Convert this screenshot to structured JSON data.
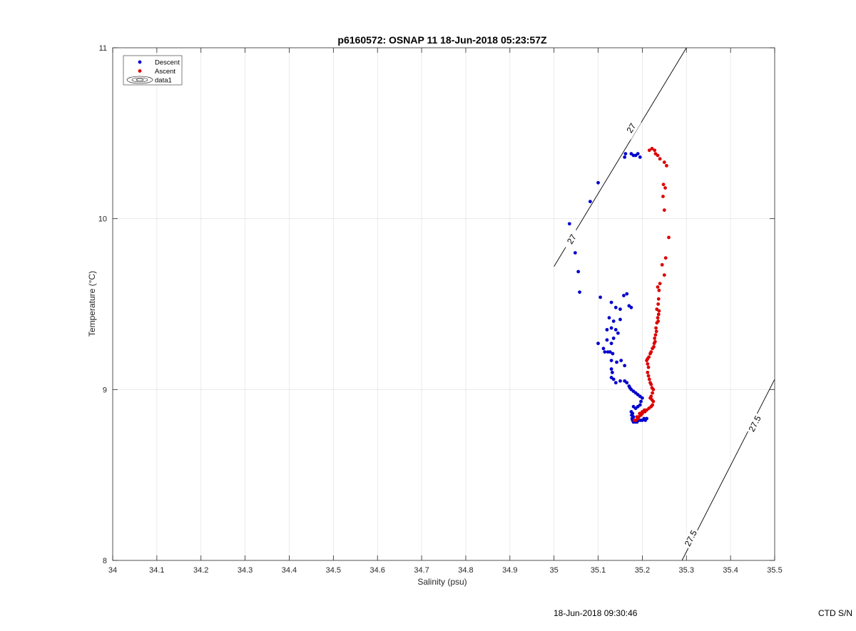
{
  "chart_data": {
    "type": "scatter",
    "title": "p6160572: OSNAP 11 18-Jun-2018 05:23:57Z",
    "xlabel": "Salinity (psu)",
    "ylabel": "Temperature (°C)",
    "xlim": [
      34,
      35.5
    ],
    "ylim": [
      8,
      11
    ],
    "x_ticks": [
      34,
      34.1,
      34.2,
      34.3,
      34.4,
      34.5,
      34.6,
      34.7,
      34.8,
      34.9,
      35,
      35.1,
      35.2,
      35.3,
      35.4,
      35.5
    ],
    "x_tick_labels": [
      "34",
      "34.1",
      "34.2",
      "34.3",
      "34.4",
      "34.5",
      "34.6",
      "34.7",
      "34.8",
      "34.9",
      "35",
      "35.1",
      "35.2",
      "35.3",
      "35.4",
      "35.5"
    ],
    "y_ticks": [
      8,
      9,
      10,
      11
    ],
    "y_tick_labels": [
      "8",
      "9",
      "10",
      "11"
    ],
    "grid": true,
    "legend_position": "top-left",
    "legend": [
      {
        "label": "Descent",
        "color": "#0000cc",
        "marker": "dot"
      },
      {
        "label": "Ascent",
        "color": "#dd0000",
        "marker": "dot"
      },
      {
        "label": "data1",
        "marker": "contour"
      }
    ],
    "series": [
      {
        "name": "Descent",
        "color": "#0000cc",
        "points": [
          [
            35.16,
            10.36
          ],
          [
            35.162,
            10.38
          ],
          [
            35.175,
            10.38
          ],
          [
            35.18,
            10.37
          ],
          [
            35.185,
            10.37
          ],
          [
            35.19,
            10.38
          ],
          [
            35.195,
            10.36
          ],
          [
            35.1,
            10.21
          ],
          [
            35.082,
            10.1
          ],
          [
            35.035,
            9.97
          ],
          [
            35.048,
            9.8
          ],
          [
            35.055,
            9.69
          ],
          [
            35.058,
            9.57
          ],
          [
            35.105,
            9.54
          ],
          [
            35.158,
            9.55
          ],
          [
            35.165,
            9.56
          ],
          [
            35.13,
            9.51
          ],
          [
            35.14,
            9.48
          ],
          [
            35.15,
            9.47
          ],
          [
            35.17,
            9.49
          ],
          [
            35.175,
            9.48
          ],
          [
            35.125,
            9.42
          ],
          [
            35.135,
            9.4
          ],
          [
            35.15,
            9.41
          ],
          [
            35.12,
            9.35
          ],
          [
            35.13,
            9.36
          ],
          [
            35.14,
            9.35
          ],
          [
            35.145,
            9.33
          ],
          [
            35.1,
            9.27
          ],
          [
            35.112,
            9.24
          ],
          [
            35.12,
            9.29
          ],
          [
            35.13,
            9.27
          ],
          [
            35.135,
            9.3
          ],
          [
            35.115,
            9.22
          ],
          [
            35.122,
            9.22
          ],
          [
            35.127,
            9.22
          ],
          [
            35.133,
            9.21
          ],
          [
            35.13,
            9.17
          ],
          [
            35.142,
            9.16
          ],
          [
            35.152,
            9.17
          ],
          [
            35.16,
            9.14
          ],
          [
            35.13,
            9.12
          ],
          [
            35.132,
            9.1
          ],
          [
            35.13,
            9.07
          ],
          [
            35.135,
            9.06
          ],
          [
            35.14,
            9.04
          ],
          [
            35.15,
            9.05
          ],
          [
            35.16,
            9.05
          ],
          [
            35.165,
            9.04
          ],
          [
            35.17,
            9.02
          ],
          [
            35.172,
            9.01
          ],
          [
            35.175,
            9.0
          ],
          [
            35.18,
            8.99
          ],
          [
            35.185,
            8.98
          ],
          [
            35.19,
            8.97
          ],
          [
            35.195,
            8.96
          ],
          [
            35.2,
            8.95
          ],
          [
            35.197,
            8.93
          ],
          [
            35.195,
            8.91
          ],
          [
            35.19,
            8.9
          ],
          [
            35.185,
            8.89
          ],
          [
            35.18,
            8.9
          ],
          [
            35.175,
            8.87
          ],
          [
            35.178,
            8.86
          ],
          [
            35.176,
            8.85
          ],
          [
            35.18,
            8.84
          ],
          [
            35.177,
            8.83
          ],
          [
            35.178,
            8.82
          ],
          [
            35.18,
            8.81
          ],
          [
            35.184,
            8.81
          ],
          [
            35.188,
            8.81
          ],
          [
            35.192,
            8.82
          ],
          [
            35.196,
            8.82
          ],
          [
            35.2,
            8.82
          ],
          [
            35.204,
            8.83
          ],
          [
            35.207,
            8.82
          ],
          [
            35.21,
            8.83
          ]
        ]
      },
      {
        "name": "Ascent",
        "color": "#dd0000",
        "points": [
          [
            35.216,
            10.4
          ],
          [
            35.222,
            10.41
          ],
          [
            35.228,
            10.4
          ],
          [
            35.23,
            10.38
          ],
          [
            35.235,
            10.37
          ],
          [
            35.24,
            10.35
          ],
          [
            35.25,
            10.33
          ],
          [
            35.255,
            10.31
          ],
          [
            35.248,
            10.2
          ],
          [
            35.252,
            10.18
          ],
          [
            35.247,
            10.13
          ],
          [
            35.25,
            10.05
          ],
          [
            35.26,
            9.89
          ],
          [
            35.253,
            9.77
          ],
          [
            35.245,
            9.73
          ],
          [
            35.25,
            9.67
          ],
          [
            35.24,
            9.62
          ],
          [
            35.235,
            9.6
          ],
          [
            35.238,
            9.58
          ],
          [
            35.237,
            9.53
          ],
          [
            35.236,
            9.5
          ],
          [
            35.233,
            9.47
          ],
          [
            35.238,
            9.46
          ],
          [
            35.237,
            9.44
          ],
          [
            35.235,
            9.42
          ],
          [
            35.236,
            9.4
          ],
          [
            35.233,
            9.39
          ],
          [
            35.231,
            9.36
          ],
          [
            35.232,
            9.34
          ],
          [
            35.23,
            9.32
          ],
          [
            35.228,
            9.3
          ],
          [
            35.229,
            9.28
          ],
          [
            35.227,
            9.27
          ],
          [
            35.226,
            9.25
          ],
          [
            35.223,
            9.24
          ],
          [
            35.22,
            9.22
          ],
          [
            35.218,
            9.21
          ],
          [
            35.215,
            9.19
          ],
          [
            35.212,
            9.18
          ],
          [
            35.21,
            9.17
          ],
          [
            35.212,
            9.15
          ],
          [
            35.214,
            9.13
          ],
          [
            35.212,
            9.1
          ],
          [
            35.214,
            9.08
          ],
          [
            35.216,
            9.06
          ],
          [
            35.218,
            9.04
          ],
          [
            35.22,
            9.03
          ],
          [
            35.222,
            9.01
          ],
          [
            35.225,
            9.0
          ],
          [
            35.223,
            8.98
          ],
          [
            35.22,
            8.96
          ],
          [
            35.218,
            8.95
          ],
          [
            35.222,
            8.94
          ],
          [
            35.225,
            8.93
          ],
          [
            35.223,
            8.91
          ],
          [
            35.22,
            8.9
          ],
          [
            35.215,
            8.89
          ],
          [
            35.21,
            8.88
          ],
          [
            35.206,
            8.87
          ],
          [
            35.2,
            8.86
          ],
          [
            35.197,
            8.85
          ],
          [
            35.192,
            8.84
          ],
          [
            35.19,
            8.83
          ],
          [
            35.185,
            8.82
          ],
          [
            35.182,
            8.82
          ],
          [
            35.188,
            8.84
          ],
          [
            35.194,
            8.86
          ],
          [
            35.2,
            8.87
          ],
          [
            35.205,
            8.88
          ]
        ]
      }
    ],
    "isopycnals": [
      {
        "label": "27",
        "x": [
          35.0,
          35.3
        ],
        "y": [
          9.72,
          11.0
        ],
        "label_positions": [
          [
            35.04,
            9.88
          ],
          [
            35.175,
            10.53
          ]
        ]
      },
      {
        "label": "27.5",
        "x": [
          35.29,
          35.5
        ],
        "y": [
          8.0,
          9.06
        ],
        "label_positions": [
          [
            35.31,
            8.13
          ],
          [
            35.455,
            8.8
          ]
        ]
      }
    ]
  },
  "footer": {
    "timestamp": "18-Jun-2018 09:30:46",
    "ctd_label": "CTD S/N"
  }
}
